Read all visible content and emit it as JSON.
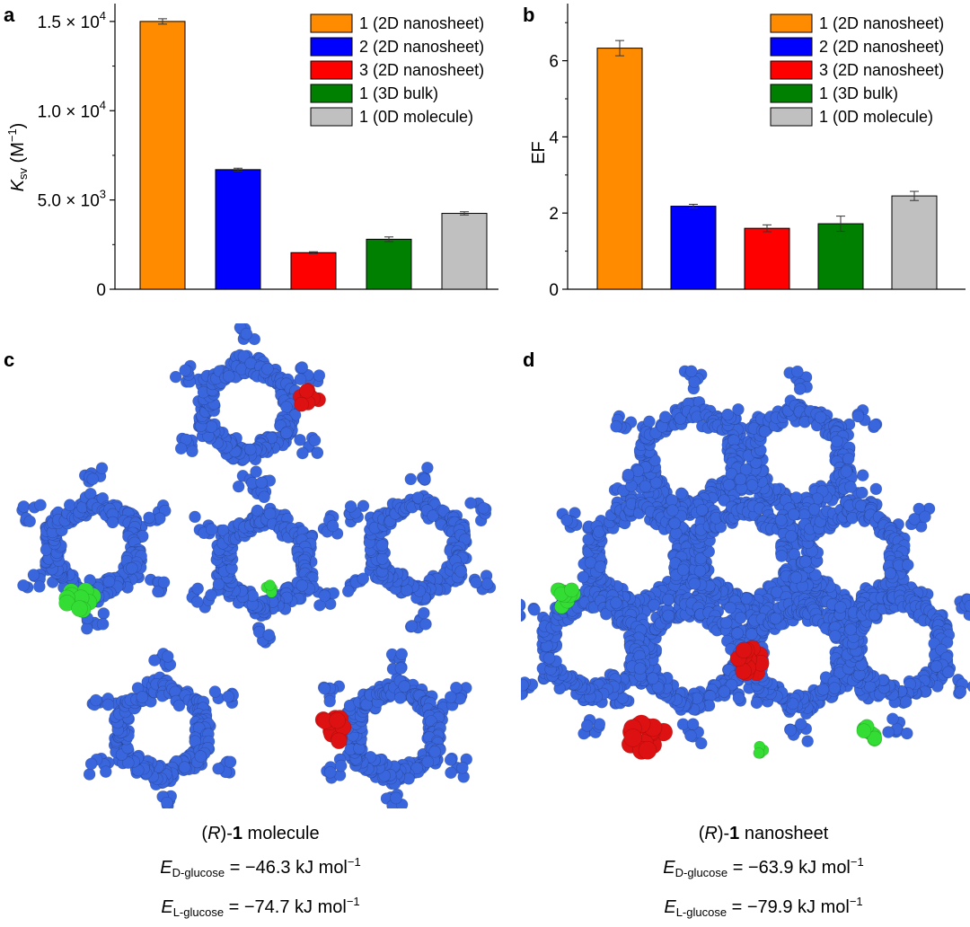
{
  "chart_data": [
    {
      "panel": "a",
      "type": "bar",
      "ylabel_main": "K",
      "ylabel_sub": "sv",
      "ylabel_unit": " (M",
      "ylabel_unit_sup": "−1",
      "ylabel_close": ")",
      "ylim": [
        0,
        16000
      ],
      "yticks": [
        {
          "value": 0,
          "mant": "0",
          "exp": ""
        },
        {
          "value": 5000,
          "mant": "5.0 × 10",
          "exp": "3"
        },
        {
          "value": 10000,
          "mant": "1.0 × 10",
          "exp": "4"
        },
        {
          "value": 15000,
          "mant": "1.5 × 10",
          "exp": "4"
        }
      ],
      "series": [
        {
          "name": "1 (2D nanosheet)",
          "color": "#ff8c00",
          "value": 15000,
          "err": 150
        },
        {
          "name": "2 (2D nanosheet)",
          "color": "#0000ff",
          "value": 6700,
          "err": 80
        },
        {
          "name": "3 (2D nanosheet)",
          "color": "#ff0000",
          "value": 2050,
          "err": 50
        },
        {
          "name": "1 (3D bulk)",
          "color": "#008000",
          "value": 2800,
          "err": 130
        },
        {
          "name": "1 (0D molecule)",
          "color": "#c0c0c0",
          "value": 4250,
          "err": 90
        }
      ]
    },
    {
      "panel": "b",
      "type": "bar",
      "ylabel": "EF",
      "ylim": [
        0,
        7.5
      ],
      "yticks": [
        {
          "value": 0,
          "mant": "0",
          "exp": ""
        },
        {
          "value": 2,
          "mant": "2",
          "exp": ""
        },
        {
          "value": 4,
          "mant": "4",
          "exp": ""
        },
        {
          "value": 6,
          "mant": "6",
          "exp": ""
        }
      ],
      "series": [
        {
          "name": "1 (2D nanosheet)",
          "color": "#ff8c00",
          "value": 6.33,
          "err": 0.2
        },
        {
          "name": "2 (2D nanosheet)",
          "color": "#0000ff",
          "value": 2.18,
          "err": 0.05
        },
        {
          "name": "3 (2D nanosheet)",
          "color": "#ff0000",
          "value": 1.6,
          "err": 0.09
        },
        {
          "name": "1 (3D bulk)",
          "color": "#008000",
          "value": 1.72,
          "err": 0.2
        },
        {
          "name": "1 (0D molecule)",
          "color": "#c0c0c0",
          "value": 2.45,
          "err": 0.12
        }
      ]
    }
  ],
  "panels": {
    "a": "a",
    "b": "b",
    "c": "c",
    "d": "d"
  },
  "colors": {
    "framework": "#3a66dd",
    "d_glucose": "#dd1111",
    "l_glucose": "#33dd33"
  },
  "caption_c": {
    "title_r": "R",
    "title_num": "1",
    "title_rest": " molecule",
    "e1_label": "E",
    "e1_sub": "D-glucose",
    "e1_value": " = −46.3 kJ mol",
    "e1_sup": "−1",
    "e2_label": "E",
    "e2_sub": "L-glucose",
    "e2_value": " = −74.7 kJ mol",
    "e2_sup": "−1"
  },
  "caption_d": {
    "title_r": "R",
    "title_num": "1",
    "title_rest": " nanosheet",
    "e1_label": "E",
    "e1_sub": "D-glucose",
    "e1_value": " = −63.9 kJ mol",
    "e1_sup": "−1",
    "e2_label": "E",
    "e2_sub": "L-glucose",
    "e2_value": " = −79.9 kJ mol",
    "e2_sup": "−1"
  }
}
